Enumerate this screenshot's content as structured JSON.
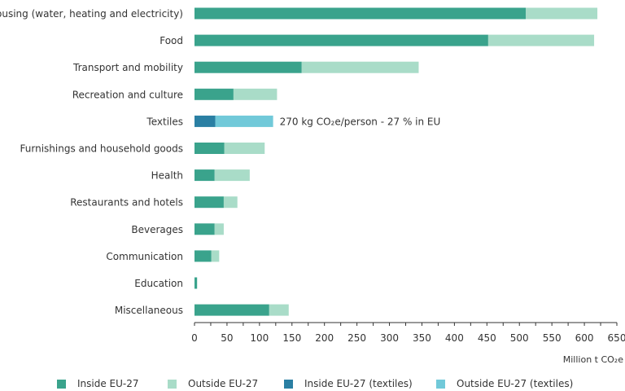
{
  "chart_data": {
    "type": "bar",
    "stacked": true,
    "orientation": "horizontal",
    "categories": [
      "Housing (water, heating and electricity)",
      "Food",
      "Transport and mobility",
      "Recreation and culture",
      "Textiles",
      "Furnishings and household goods",
      "Health",
      "Restaurants and hotels",
      "Beverages",
      "Communication",
      "Education",
      "Miscellaneous"
    ],
    "series": [
      {
        "name": "Inside EU-27",
        "color": "#3aa38c",
        "values": [
          510,
          452,
          165,
          60,
          0,
          46,
          31,
          45,
          31,
          26,
          4,
          115
        ]
      },
      {
        "name": "Outside EU-27",
        "color": "#a9dcc8",
        "values": [
          110,
          163,
          180,
          67,
          0,
          62,
          54,
          21,
          14,
          12,
          0,
          30
        ]
      },
      {
        "name": "Inside EU-27 (textiles)",
        "color": "#2a7fa3",
        "values": [
          0,
          0,
          0,
          0,
          32,
          0,
          0,
          0,
          0,
          0,
          0,
          0
        ]
      },
      {
        "name": "Outside EU-27 (textiles)",
        "color": "#71c9d9",
        "values": [
          0,
          0,
          0,
          0,
          89,
          0,
          0,
          0,
          0,
          0,
          0,
          0
        ]
      }
    ],
    "xlim": [
      0,
      650
    ],
    "xticks": [
      "0",
      "25",
      "50",
      "75",
      "100",
      "125",
      "150",
      "175",
      "200",
      "225",
      "250",
      "275",
      "300",
      "325",
      "350",
      "375",
      "400",
      "425",
      "450",
      "475",
      "500",
      "525",
      "550",
      "575",
      "600",
      "625",
      "650"
    ],
    "xtick_labels": [
      "0",
      "50",
      "100",
      "150",
      "200",
      "250",
      "300",
      "350",
      "400",
      "450",
      "500",
      "550",
      "600",
      "650"
    ],
    "xtick_label_values": [
      0,
      50,
      100,
      150,
      200,
      250,
      300,
      350,
      400,
      450,
      500,
      550,
      600,
      650
    ],
    "xlabel": "Million t CO₂e",
    "title": "",
    "annotation": {
      "category": "Textiles",
      "text": "270 kg CO₂e/person - 27 % in EU"
    },
    "legend_position": "bottom"
  }
}
